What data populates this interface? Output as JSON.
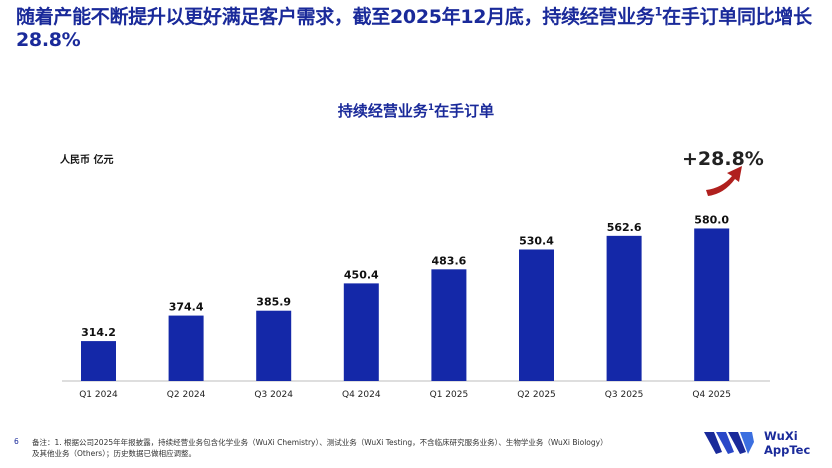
{
  "headline_part1": "随着产能不断提升以更好满足客户需求，截至2025年12月底，持续经营业务",
  "headline_sup": "1",
  "headline_part2": "在手订单同比增长28.8%",
  "chart_title_main": "持续经营业务",
  "chart_title_sup": "1",
  "chart_title_tail": "在手订单",
  "unit_label": "人民币 亿元",
  "growth_label": "+28.8%",
  "page_number": "6",
  "footnote_line1": "备注：1. 根据公司2025年年报披露，持续经营业务包含化学业务（WuXi Chemistry）、测试业务（WuXi Testing，不含临床研究服务业务）、生物学业务（WuXi Biology）",
  "footnote_line2": "及其他业务（Others）；历史数据已做相应调整。",
  "logo": {
    "line1": "WuXi",
    "line2": "AppTec"
  },
  "colors": {
    "bar": "#1428a8",
    "title": "#1a2a9a",
    "arrow": "#b0201e"
  },
  "chart_data": {
    "type": "bar",
    "categories": [
      "Q1 2024",
      "Q2 2024",
      "Q3 2024",
      "Q4 2024",
      "Q1 2025",
      "Q2 2025",
      "Q3 2025",
      "Q4 2025"
    ],
    "values": [
      314.2,
      374.4,
      385.9,
      450.4,
      483.6,
      530.4,
      562.6,
      580.0
    ],
    "value_labels": [
      "314.2",
      "374.4",
      "385.9",
      "450.4",
      "483.6",
      "530.4",
      "562.6",
      "580.0"
    ],
    "title": "持续经营业务1在手订单",
    "ylabel": "人民币 亿元",
    "ylim": [
      220,
      600
    ],
    "grid": false,
    "legend": "none"
  }
}
